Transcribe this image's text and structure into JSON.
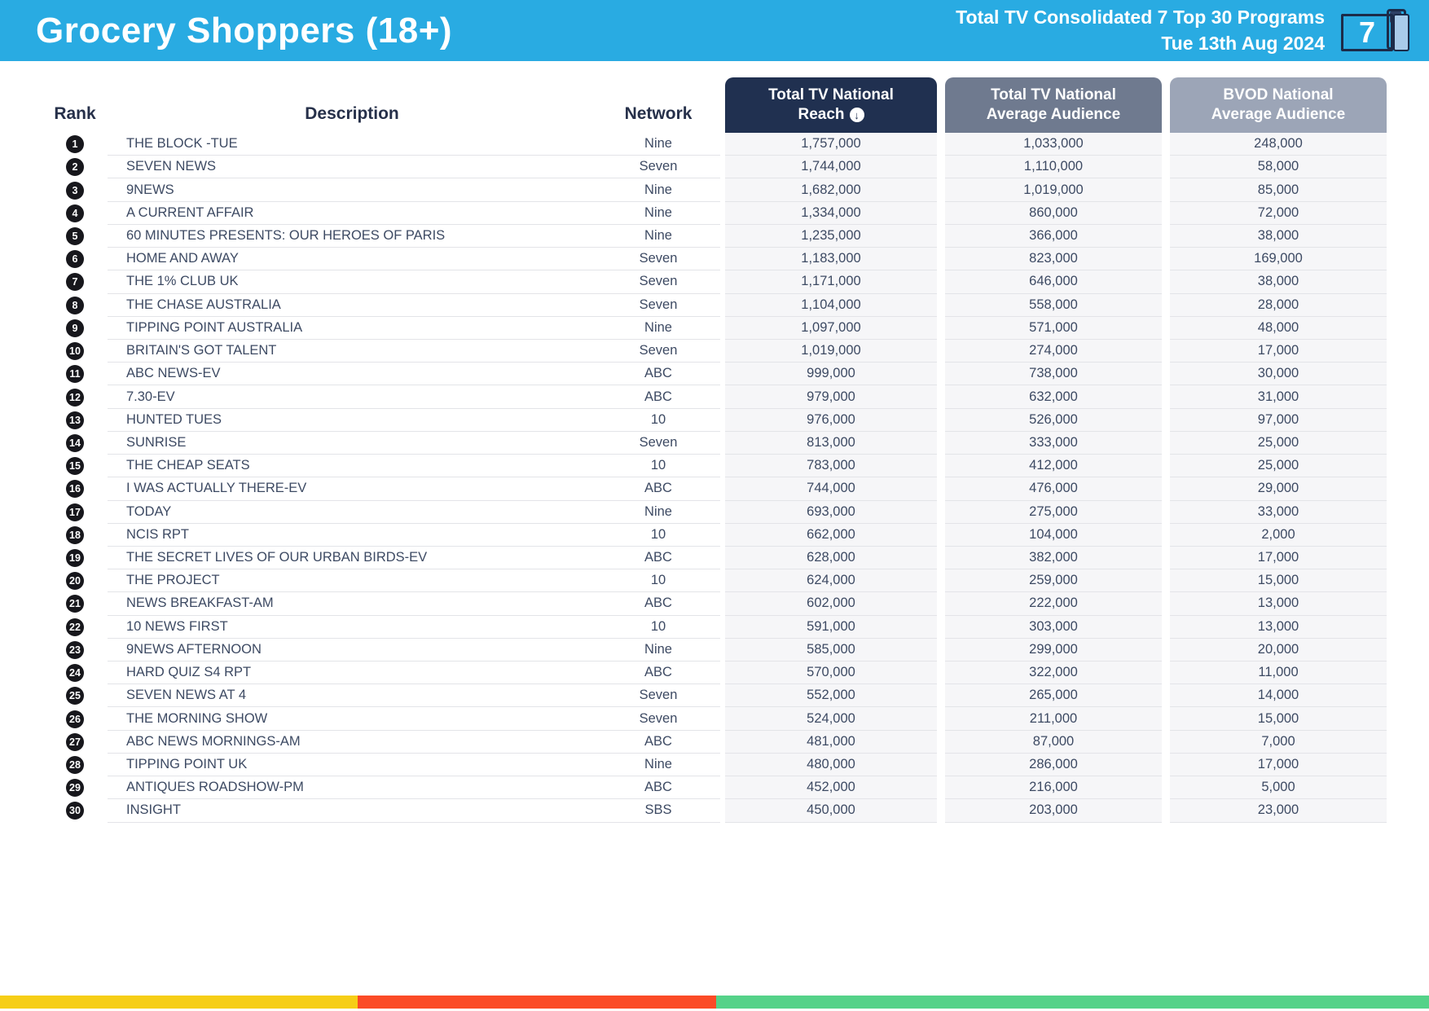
{
  "header": {
    "title": "Grocery Shoppers (18+)",
    "subtitle_line1": "Total TV Consolidated 7 Top 30 Programs",
    "subtitle_line2": "Tue 13th Aug 2024",
    "icon_number": "7",
    "bg_color": "#29ABE2"
  },
  "table": {
    "columns": {
      "rank": "Rank",
      "description": "Description",
      "network": "Network",
      "reach_line1": "Total TV National",
      "reach_line2": "Reach",
      "avg_line1": "Total TV National",
      "avg_line2": "Average Audience",
      "bvod_line1": "BVOD National",
      "bvod_line2": "Average Audience",
      "sort_arrow": "↓"
    },
    "header_colors": {
      "reach": "#203050",
      "avg": "#6F7A8F",
      "bvod": "#9CA5B7"
    }
  },
  "chart_data": {
    "type": "table",
    "title": "Grocery Shoppers (18+) — Total TV Consolidated 7 Top 30 Programs — Tue 13th Aug 2024",
    "columns": [
      "Rank",
      "Description",
      "Network",
      "Total TV National Reach",
      "Total TV National Average Audience",
      "BVOD National Average Audience"
    ],
    "rows": [
      [
        "1",
        "THE BLOCK -TUE",
        "Nine",
        "1,757,000",
        "1,033,000",
        "248,000"
      ],
      [
        "2",
        "SEVEN NEWS",
        "Seven",
        "1,744,000",
        "1,110,000",
        "58,000"
      ],
      [
        "3",
        "9NEWS",
        "Nine",
        "1,682,000",
        "1,019,000",
        "85,000"
      ],
      [
        "4",
        "A CURRENT AFFAIR",
        "Nine",
        "1,334,000",
        "860,000",
        "72,000"
      ],
      [
        "5",
        "60 MINUTES PRESENTS: OUR HEROES OF PARIS",
        "Nine",
        "1,235,000",
        "366,000",
        "38,000"
      ],
      [
        "6",
        "HOME AND AWAY",
        "Seven",
        "1,183,000",
        "823,000",
        "169,000"
      ],
      [
        "7",
        "THE 1% CLUB UK",
        "Seven",
        "1,171,000",
        "646,000",
        "38,000"
      ],
      [
        "8",
        "THE CHASE AUSTRALIA",
        "Seven",
        "1,104,000",
        "558,000",
        "28,000"
      ],
      [
        "9",
        "TIPPING POINT AUSTRALIA",
        "Nine",
        "1,097,000",
        "571,000",
        "48,000"
      ],
      [
        "10",
        "BRITAIN'S GOT TALENT",
        "Seven",
        "1,019,000",
        "274,000",
        "17,000"
      ],
      [
        "11",
        "ABC NEWS-EV",
        "ABC",
        "999,000",
        "738,000",
        "30,000"
      ],
      [
        "12",
        "7.30-EV",
        "ABC",
        "979,000",
        "632,000",
        "31,000"
      ],
      [
        "13",
        "HUNTED TUES",
        "10",
        "976,000",
        "526,000",
        "97,000"
      ],
      [
        "14",
        "SUNRISE",
        "Seven",
        "813,000",
        "333,000",
        "25,000"
      ],
      [
        "15",
        "THE CHEAP SEATS",
        "10",
        "783,000",
        "412,000",
        "25,000"
      ],
      [
        "16",
        "I WAS ACTUALLY THERE-EV",
        "ABC",
        "744,000",
        "476,000",
        "29,000"
      ],
      [
        "17",
        "TODAY",
        "Nine",
        "693,000",
        "275,000",
        "33,000"
      ],
      [
        "18",
        "NCIS RPT",
        "10",
        "662,000",
        "104,000",
        "2,000"
      ],
      [
        "19",
        "THE SECRET LIVES OF OUR URBAN BIRDS-EV",
        "ABC",
        "628,000",
        "382,000",
        "17,000"
      ],
      [
        "20",
        "THE PROJECT",
        "10",
        "624,000",
        "259,000",
        "15,000"
      ],
      [
        "21",
        "NEWS BREAKFAST-AM",
        "ABC",
        "602,000",
        "222,000",
        "13,000"
      ],
      [
        "22",
        "10 NEWS FIRST",
        "10",
        "591,000",
        "303,000",
        "13,000"
      ],
      [
        "23",
        "9NEWS AFTERNOON",
        "Nine",
        "585,000",
        "299,000",
        "20,000"
      ],
      [
        "24",
        "HARD QUIZ S4 RPT",
        "ABC",
        "570,000",
        "322,000",
        "11,000"
      ],
      [
        "25",
        "SEVEN NEWS AT 4",
        "Seven",
        "552,000",
        "265,000",
        "14,000"
      ],
      [
        "26",
        "THE MORNING SHOW",
        "Seven",
        "524,000",
        "211,000",
        "15,000"
      ],
      [
        "27",
        "ABC NEWS MORNINGS-AM",
        "ABC",
        "481,000",
        "87,000",
        "7,000"
      ],
      [
        "28",
        "TIPPING POINT UK",
        "Nine",
        "480,000",
        "286,000",
        "17,000"
      ],
      [
        "29",
        "ANTIQUES ROADSHOW-PM",
        "ABC",
        "452,000",
        "216,000",
        "5,000"
      ],
      [
        "30",
        "INSIGHT",
        "SBS",
        "450,000",
        "203,000",
        "23,000"
      ]
    ]
  },
  "footer": {
    "segments": [
      {
        "name": "yellow",
        "color": "#F6CE17",
        "width_pct": 25.0
      },
      {
        "name": "red",
        "color": "#FB4B26",
        "width_pct": 25.1
      },
      {
        "name": "green",
        "color": "#55D289",
        "width_pct": 49.9
      }
    ]
  }
}
